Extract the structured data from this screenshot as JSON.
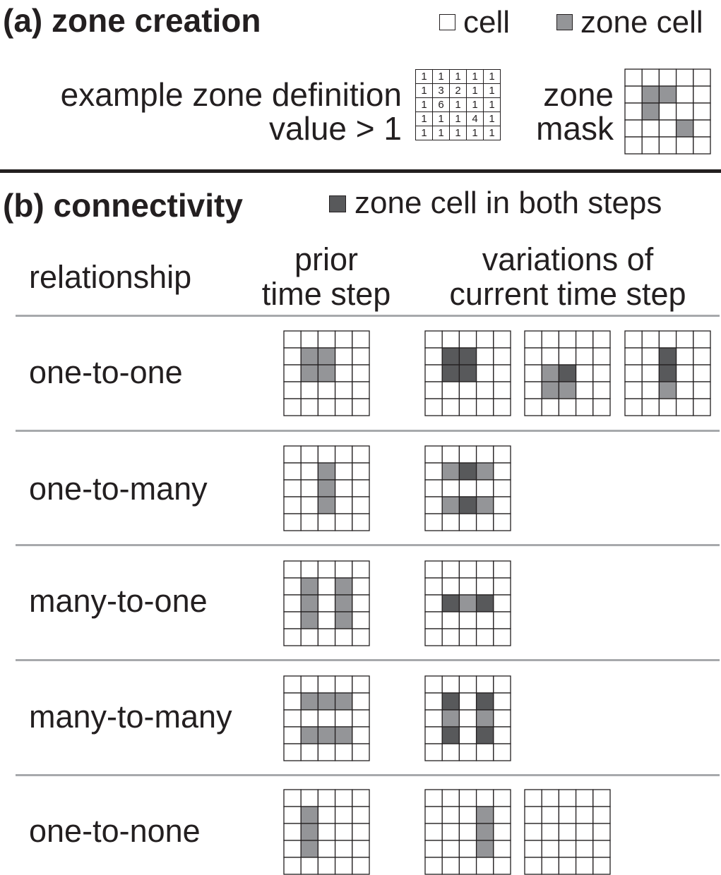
{
  "section_a": {
    "title": "(a) zone creation",
    "legend": [
      {
        "label": "cell",
        "color": "#ffffff"
      },
      {
        "label": "zone cell",
        "color": "#949598"
      }
    ],
    "example_line1": "example zone definition",
    "example_line2": "value > 1",
    "definition_grid": [
      [
        "1",
        "1",
        "1",
        "1",
        "1"
      ],
      [
        "1",
        "3",
        "2",
        "1",
        "1"
      ],
      [
        "1",
        "6",
        "1",
        "1",
        "1"
      ],
      [
        "1",
        "1",
        "1",
        "4",
        "1"
      ],
      [
        "1",
        "1",
        "1",
        "1",
        "1"
      ]
    ],
    "mask_line1": "zone",
    "mask_line2": "mask",
    "mask_grid": [
      [
        0,
        0,
        0,
        0,
        0
      ],
      [
        0,
        1,
        1,
        0,
        0
      ],
      [
        0,
        1,
        0,
        0,
        0
      ],
      [
        0,
        0,
        0,
        1,
        0
      ],
      [
        0,
        0,
        0,
        0,
        0
      ]
    ]
  },
  "section_b": {
    "title": "(b) connectivity",
    "legend_label": "zone cell in both steps",
    "legend_color": "#58595b",
    "col_relationship": "relationship",
    "col_prior_line1": "prior",
    "col_prior_line2": "time step",
    "col_current_line1": "variations of",
    "col_current_line2": "current time step",
    "rows": [
      {
        "label": "one-to-one",
        "prior": [
          [
            0,
            0,
            0,
            0,
            0
          ],
          [
            0,
            1,
            1,
            0,
            0
          ],
          [
            0,
            1,
            1,
            0,
            0
          ],
          [
            0,
            0,
            0,
            0,
            0
          ],
          [
            0,
            0,
            0,
            0,
            0
          ]
        ],
        "current": [
          [
            [
              0,
              0,
              0,
              0,
              0
            ],
            [
              0,
              2,
              2,
              0,
              0
            ],
            [
              0,
              2,
              2,
              0,
              0
            ],
            [
              0,
              0,
              0,
              0,
              0
            ],
            [
              0,
              0,
              0,
              0,
              0
            ]
          ],
          [
            [
              0,
              0,
              0,
              0,
              0
            ],
            [
              0,
              0,
              0,
              0,
              0
            ],
            [
              0,
              1,
              2,
              0,
              0
            ],
            [
              0,
              1,
              1,
              0,
              0
            ],
            [
              0,
              0,
              0,
              0,
              0
            ]
          ],
          [
            [
              0,
              0,
              0,
              0,
              0
            ],
            [
              0,
              0,
              2,
              0,
              0
            ],
            [
              0,
              0,
              2,
              0,
              0
            ],
            [
              0,
              0,
              1,
              0,
              0
            ],
            [
              0,
              0,
              0,
              0,
              0
            ]
          ]
        ]
      },
      {
        "label": "one-to-many",
        "prior": [
          [
            0,
            0,
            0,
            0,
            0
          ],
          [
            0,
            0,
            1,
            0,
            0
          ],
          [
            0,
            0,
            1,
            0,
            0
          ],
          [
            0,
            0,
            1,
            0,
            0
          ],
          [
            0,
            0,
            0,
            0,
            0
          ]
        ],
        "current": [
          [
            [
              0,
              0,
              0,
              0,
              0
            ],
            [
              0,
              1,
              2,
              1,
              0
            ],
            [
              0,
              0,
              0,
              0,
              0
            ],
            [
              0,
              1,
              2,
              1,
              0
            ],
            [
              0,
              0,
              0,
              0,
              0
            ]
          ]
        ]
      },
      {
        "label": "many-to-one",
        "prior": [
          [
            0,
            0,
            0,
            0,
            0
          ],
          [
            0,
            1,
            0,
            1,
            0
          ],
          [
            0,
            1,
            0,
            1,
            0
          ],
          [
            0,
            1,
            0,
            1,
            0
          ],
          [
            0,
            0,
            0,
            0,
            0
          ]
        ],
        "current": [
          [
            [
              0,
              0,
              0,
              0,
              0
            ],
            [
              0,
              0,
              0,
              0,
              0
            ],
            [
              0,
              2,
              1,
              2,
              0
            ],
            [
              0,
              0,
              0,
              0,
              0
            ],
            [
              0,
              0,
              0,
              0,
              0
            ]
          ]
        ]
      },
      {
        "label": "many-to-many",
        "prior": [
          [
            0,
            0,
            0,
            0,
            0
          ],
          [
            0,
            1,
            1,
            1,
            0
          ],
          [
            0,
            0,
            0,
            0,
            0
          ],
          [
            0,
            1,
            1,
            1,
            0
          ],
          [
            0,
            0,
            0,
            0,
            0
          ]
        ],
        "current": [
          [
            [
              0,
              0,
              0,
              0,
              0
            ],
            [
              0,
              2,
              0,
              2,
              0
            ],
            [
              0,
              1,
              0,
              1,
              0
            ],
            [
              0,
              2,
              0,
              2,
              0
            ],
            [
              0,
              0,
              0,
              0,
              0
            ]
          ]
        ]
      },
      {
        "label": "one-to-none",
        "prior": [
          [
            0,
            0,
            0,
            0,
            0
          ],
          [
            0,
            1,
            0,
            0,
            0
          ],
          [
            0,
            1,
            0,
            0,
            0
          ],
          [
            0,
            1,
            0,
            0,
            0
          ],
          [
            0,
            0,
            0,
            0,
            0
          ]
        ],
        "current": [
          [
            [
              0,
              0,
              0,
              0,
              0
            ],
            [
              0,
              0,
              0,
              1,
              0
            ],
            [
              0,
              0,
              0,
              1,
              0
            ],
            [
              0,
              0,
              0,
              1,
              0
            ],
            [
              0,
              0,
              0,
              0,
              0
            ]
          ],
          [
            [
              0,
              0,
              0,
              0,
              0
            ],
            [
              0,
              0,
              0,
              0,
              0
            ],
            [
              0,
              0,
              0,
              0,
              0
            ],
            [
              0,
              0,
              0,
              0,
              0
            ],
            [
              0,
              0,
              0,
              0,
              0
            ]
          ]
        ]
      }
    ]
  },
  "colors": {
    "cell": "#ffffff",
    "zone_cell": "#949598",
    "zone_cell_both": "#58595b",
    "grid_line": "#231f20",
    "divider": "#a7a9ac"
  }
}
